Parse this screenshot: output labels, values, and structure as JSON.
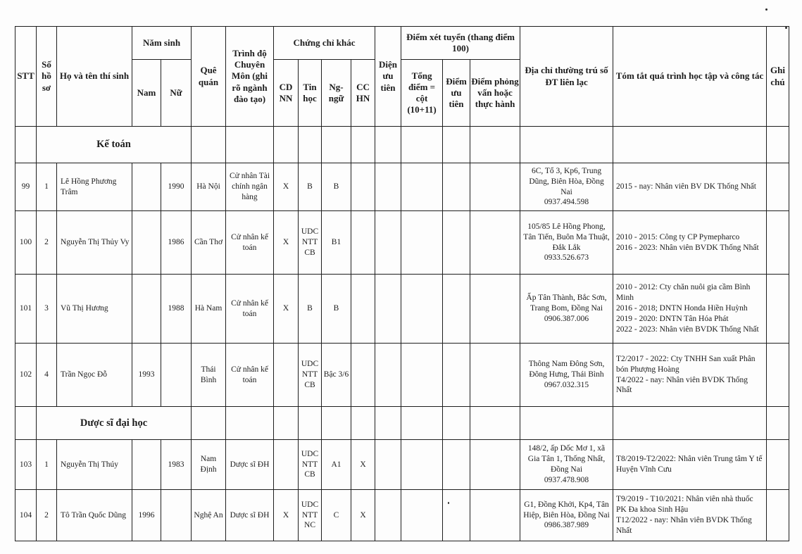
{
  "style": {
    "ink": "#1c1c1c",
    "paper": "#fdfdfd"
  },
  "table": {
    "header": {
      "stt": "STT",
      "so_ho_so": "Số hồ sơ",
      "ho_ten": "Họ và tên thí sinh",
      "nam_sinh": "Năm sinh",
      "nam": "Nam",
      "nu": "Nữ",
      "que_quan": "Quê quán",
      "trinh_do": "Trình độ Chuyên Môn (ghi rõ ngành đào tạo)",
      "chung_chi_khac": "Chứng chỉ khác",
      "cdnn": "CD NN",
      "tin_hoc": "Tin học",
      "ng_ngu": "Ng-ngữ",
      "cchn": "CC HN",
      "dien_uu_tien": "Diện ưu tiên",
      "diem_xet_tuyen": "Điểm xét tuyển (thang điểm 100)",
      "tong_diem": "Tổng điểm = cột (10+11)",
      "diem_uu_tien": "Điểm ưu tiên",
      "diem_phong_van": "Điểm phỏng vấn hoặc thực hành",
      "dia_chi": "Địa chỉ thường trú số ĐT liên lạc",
      "tom_tat": "Tóm tắt quá trình học tập và công tác",
      "ghi_chu": "Ghi chú"
    },
    "column_keys": [
      "stt",
      "so-ho-so",
      "ho-ten",
      "nam-sinh-nam",
      "nam-sinh-nu",
      "que-quan",
      "trinh-do",
      "cdnn",
      "tin-hoc",
      "ng-ngu",
      "cchn",
      "dien-uu-tien",
      "tong-diem",
      "diem-uu-tien",
      "diem-phong-van",
      "dia-chi",
      "tom-tat",
      "ghi-chu"
    ],
    "rows": [
      {
        "type": "section",
        "label": "Kế toán"
      },
      {
        "type": "data",
        "cells": [
          "99",
          "1",
          "Lê Hồng Phương Trâm",
          "",
          "1990",
          "Hà Nội",
          "Cử nhân Tài chính ngân hàng",
          "X",
          "B",
          "B",
          "",
          "",
          "",
          "",
          "",
          "6C, Tổ 3, Kp6, Trung Dũng, Biên Hòa, Đồng Nai\n0937.494.598",
          "2015 - nay: Nhân viên BV DK Thống Nhất",
          ""
        ]
      },
      {
        "type": "data",
        "cells": [
          "100",
          "2",
          "Nguyễn Thị Thủy Vy",
          "",
          "1986",
          "Cần Thơ",
          "Cử nhân kế toán",
          "X",
          "UDC NTT CB",
          "B1",
          "",
          "",
          "",
          "",
          "",
          "105/85 Lê Hồng Phong, Tân Tiến, Buôn Ma Thuật, Đắk Lắk\n0933.526.673",
          "2010 - 2015: Công ty CP Pymepharco\n2016 - 2023: Nhân viên BVDK Thống Nhất",
          ""
        ]
      },
      {
        "type": "data",
        "cells": [
          "101",
          "3",
          "Vũ Thị Hương",
          "",
          "1988",
          "Hà Nam",
          "Cử nhân kế toán",
          "X",
          "B",
          "B",
          "",
          "",
          "",
          "",
          "",
          "Ấp Tân Thành, Bắc Sơn, Trang Bom, Đồng Nai\n0906.387.006",
          "2010 - 2012: Cty chăn nuôi gia cầm Bình Minh\n2016 - 2018; DNTN Honda Hiền Huỳnh\n2019 - 2020: DNTN Tân Hóa Phát\n2022 - 2023: Nhân viên BVDK Thống Nhất",
          ""
        ]
      },
      {
        "type": "data",
        "cells": [
          "102",
          "4",
          "Trần Ngọc Đỗ",
          "1993",
          "",
          "Thái Bình",
          "Cử nhân kế toán",
          "",
          "UDC NTT CB",
          "Bậc 3/6",
          "",
          "",
          "",
          "",
          "",
          "Thông Nam Đông Sơn, Đông Hưng, Thái Bình\n0967.032.315",
          "T2/2017 - 2022: Cty TNHH San xuất Phân bón Phượng Hoàng\nT4/2022 - nay: Nhân viên BVDK Thống Nhất",
          ""
        ]
      },
      {
        "type": "section",
        "label": "Dược sĩ đại học"
      },
      {
        "type": "data",
        "cells": [
          "103",
          "1",
          "Nguyễn Thị Thúy",
          "",
          "1983",
          "Nam Định",
          "Dược sĩ ĐH",
          "",
          "UDC NTT CB",
          "A1",
          "X",
          "",
          "",
          "",
          "",
          "148/2, ấp Dốc Mơ 1, xã Gia Tân 1, Thống Nhất, Đồng Nai\n0937.478.908",
          "T8/2019-T2/2022: Nhân viên Trung tâm Y tế Huyện Vĩnh Cưu",
          ""
        ]
      },
      {
        "type": "data",
        "cells": [
          "104",
          "2",
          "Tô Trần Quốc Dũng",
          "1996",
          "",
          "Nghệ An",
          "Dược sĩ ĐH",
          "X",
          "UDC NTT NC",
          "C",
          "X",
          "",
          "",
          "",
          "",
          "G1, Đồng Khởi, Kp4, Tân Hiệp, Biên Hòa, Đồng Nai\n0986.387.989",
          "T9/2019 - T10/2021: Nhân viên nhà thuốc PK Đa khoa Sinh Hậu\nT12/2022 - nay: Nhân viên BVDK Thống Nhất",
          ""
        ]
      }
    ]
  }
}
